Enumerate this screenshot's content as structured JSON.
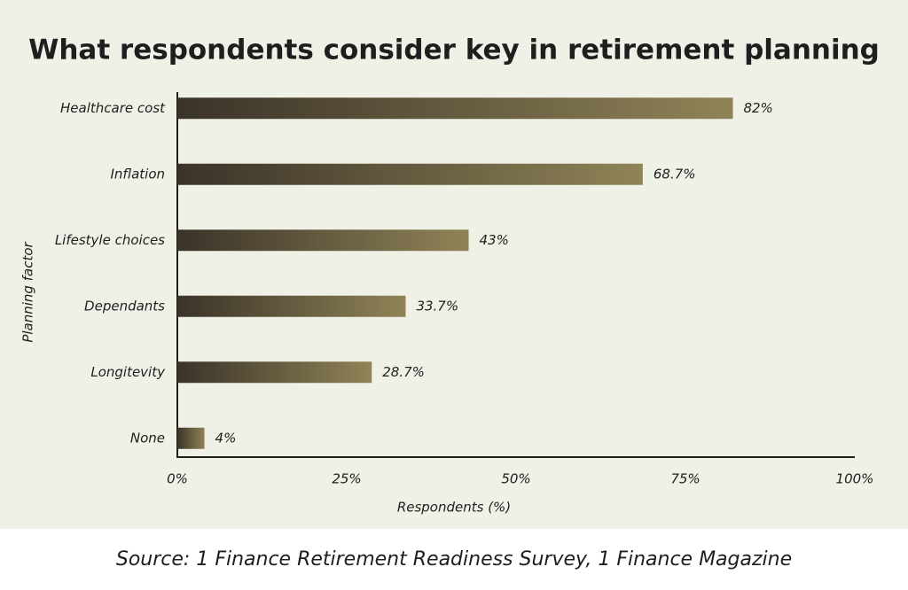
{
  "chart_data": {
    "type": "hbar",
    "title": "What respondents consider key in retirement planning",
    "x_label": "Respondents (%)",
    "y_label": "Planning factor",
    "source": "Source: 1 Finance Retirement Readiness Survey, 1 Finance Magazine",
    "categories": [
      "Healthcare cost",
      "Inflation",
      "Lifestyle choices",
      "Dependants",
      "Longitevity",
      "None"
    ],
    "values": [
      82,
      68.7,
      43,
      33.7,
      28.7,
      4
    ],
    "value_labels": [
      "82%",
      "68.7%",
      "43%",
      "33.7%",
      "28.7%",
      "4%"
    ],
    "colors": [
      "#3a3328",
      "#8f8357"
    ],
    "xlim": [
      0,
      100
    ],
    "xticks": [
      {
        "value": 0,
        "label": "0%"
      },
      {
        "value": 25,
        "label": "25%"
      },
      {
        "value": 50,
        "label": "50%"
      },
      {
        "value": 75,
        "label": "75%"
      },
      {
        "value": 100,
        "label": "100%"
      }
    ],
    "grid": false
  }
}
